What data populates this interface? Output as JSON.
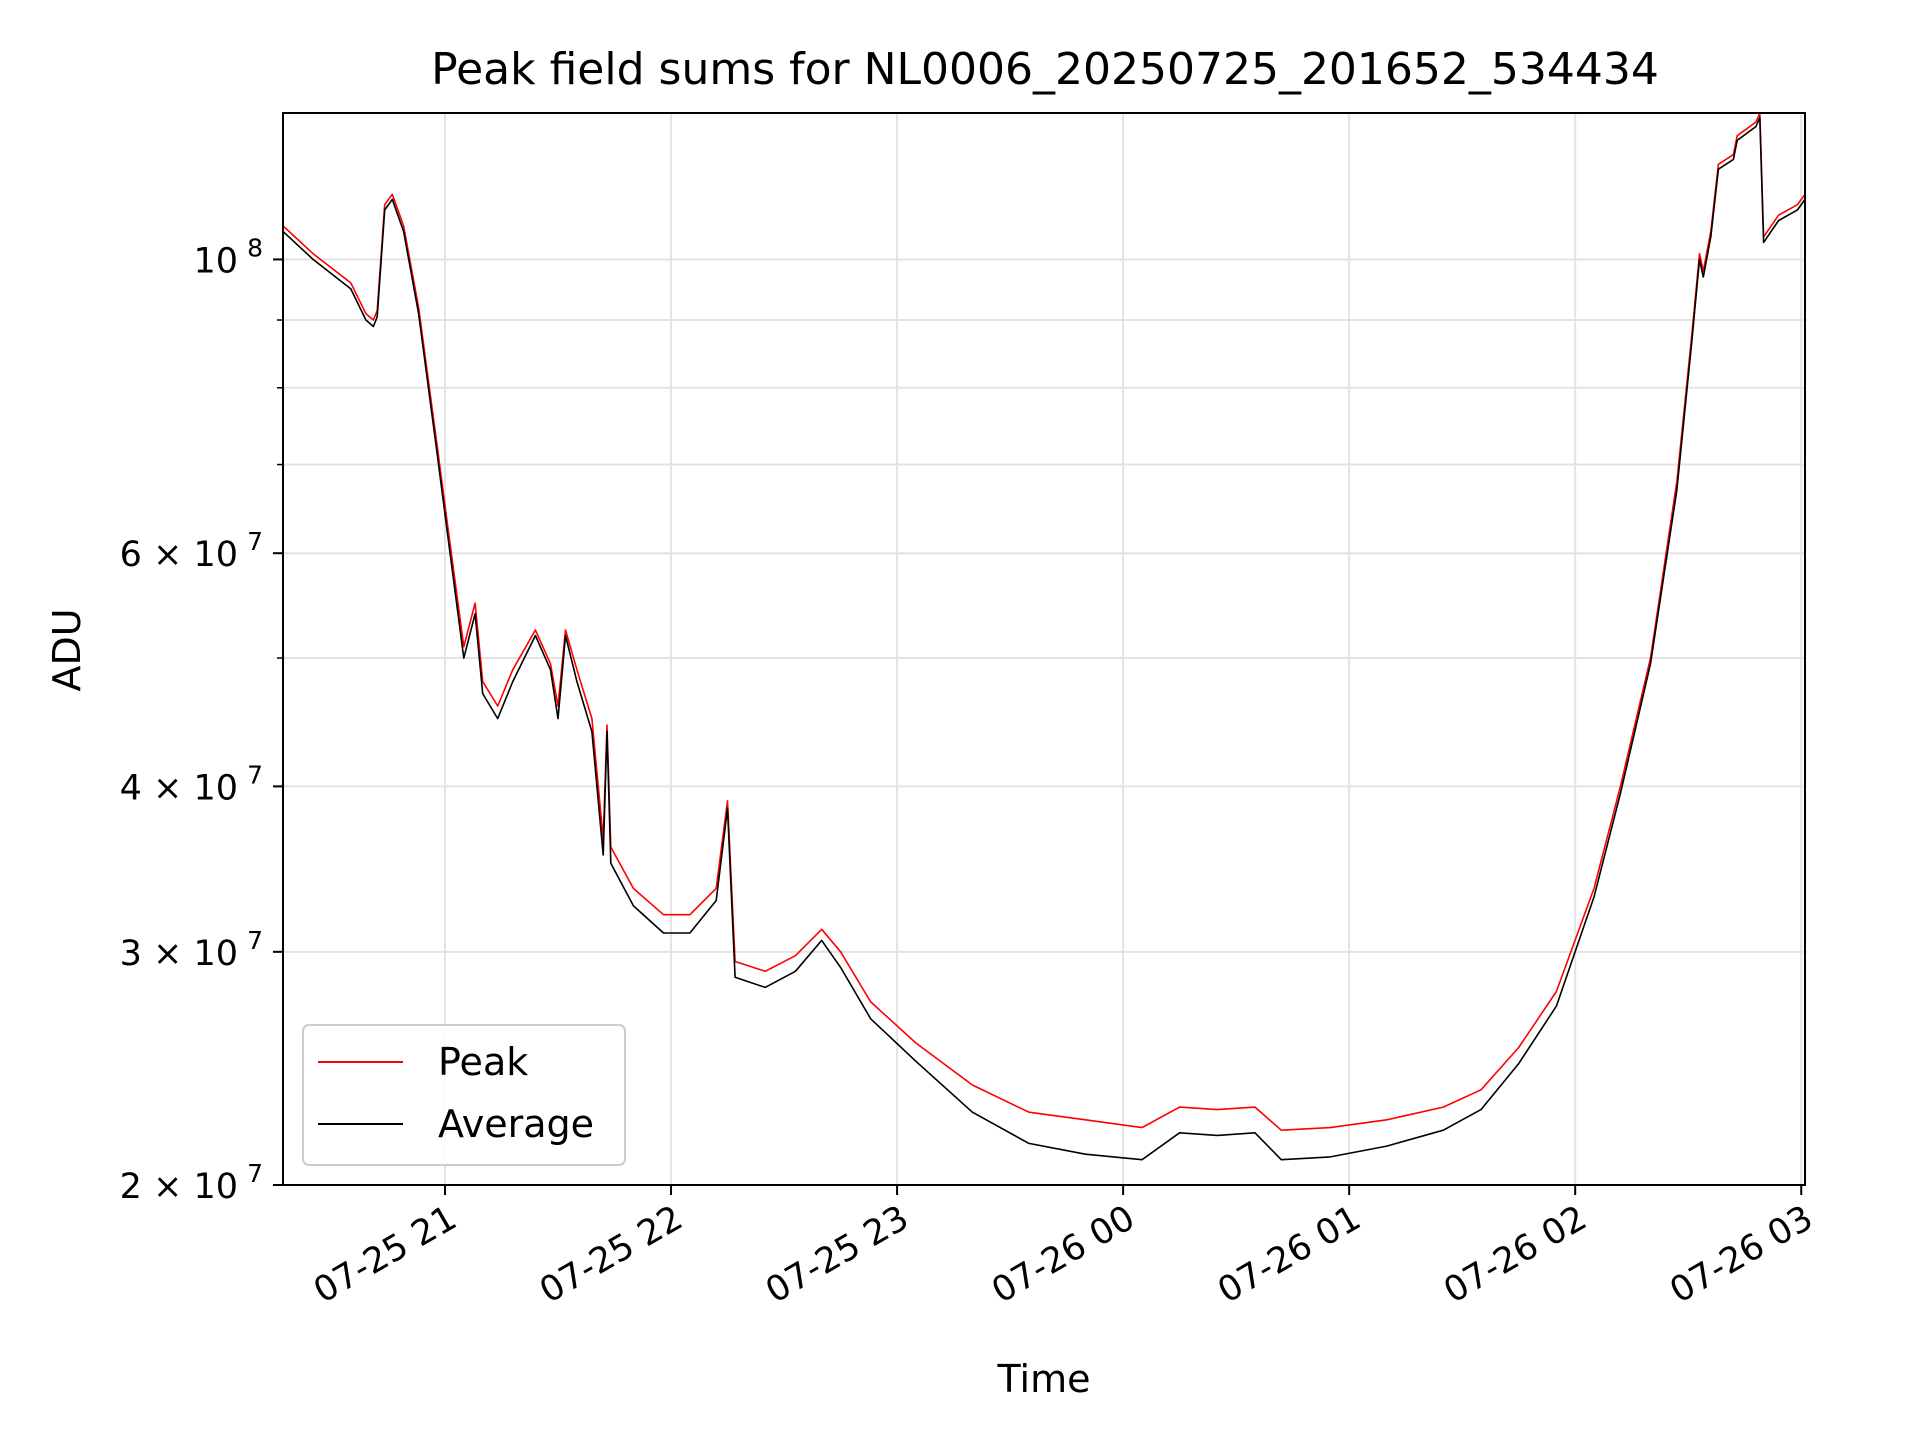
{
  "chart_data": {
    "type": "line",
    "title": "Peak field sums for NL0006_20250725_201652_534434",
    "xlabel": "Time",
    "ylabel": "ADU",
    "yscale": "log",
    "grid": true,
    "legend_position": "lower-left",
    "xlim": [
      "2025-07-25 20:17",
      "2025-07-26 03:01"
    ],
    "ylim": [
      20000000,
      129000000
    ],
    "x_ticks": [
      {
        "t": "2025-07-25 21:00",
        "label": "07-25 21"
      },
      {
        "t": "2025-07-25 22:00",
        "label": "07-25 22"
      },
      {
        "t": "2025-07-25 23:00",
        "label": "07-25 23"
      },
      {
        "t": "2025-07-26 00:00",
        "label": "07-26 00"
      },
      {
        "t": "2025-07-26 01:00",
        "label": "07-26 01"
      },
      {
        "t": "2025-07-26 02:00",
        "label": "07-26 02"
      },
      {
        "t": "2025-07-26 03:00",
        "label": "07-26 03"
      }
    ],
    "y_ticks": [
      {
        "value": 20000000,
        "label_base": "2 × 10",
        "label_exp": "7"
      },
      {
        "value": 30000000,
        "label_base": "3 × 10",
        "label_exp": "7"
      },
      {
        "value": 40000000,
        "label_base": "4 × 10",
        "label_exp": "7"
      },
      {
        "value": 60000000,
        "label_base": "6 × 10",
        "label_exp": "7"
      },
      {
        "value": 100000000,
        "label_base": "10",
        "label_exp": "8"
      }
    ],
    "y_minor_ticks": [
      50000000,
      70000000,
      80000000,
      90000000
    ],
    "series": [
      {
        "name": "Peak",
        "color": "#ff0000",
        "points": [
          [
            "2025-07-25 20:17",
            106000000
          ],
          [
            "2025-07-25 20:25",
            101000000
          ],
          [
            "2025-07-25 20:35",
            96000000
          ],
          [
            "2025-07-25 20:39",
            91000000
          ],
          [
            "2025-07-25 20:41",
            90000000
          ],
          [
            "2025-07-25 20:42",
            91500000
          ],
          [
            "2025-07-25 20:44",
            110000000
          ],
          [
            "2025-07-25 20:46",
            112000000
          ],
          [
            "2025-07-25 20:49",
            106000000
          ],
          [
            "2025-07-25 20:53",
            92000000
          ],
          [
            "2025-07-25 20:58",
            72000000
          ],
          [
            "2025-07-25 21:01",
            62000000
          ],
          [
            "2025-07-25 21:05",
            51000000
          ],
          [
            "2025-07-25 21:08",
            55000000
          ],
          [
            "2025-07-25 21:10",
            48000000
          ],
          [
            "2025-07-25 21:14",
            46000000
          ],
          [
            "2025-07-25 21:18",
            49000000
          ],
          [
            "2025-07-25 21:24",
            52500000
          ],
          [
            "2025-07-25 21:28",
            49500000
          ],
          [
            "2025-07-25 21:30",
            46000000
          ],
          [
            "2025-07-25 21:32",
            52500000
          ],
          [
            "2025-07-25 21:35",
            49000000
          ],
          [
            "2025-07-25 21:39",
            45000000
          ],
          [
            "2025-07-25 21:42",
            36500000
          ],
          [
            "2025-07-25 21:43",
            44500000
          ],
          [
            "2025-07-25 21:44",
            36000000
          ],
          [
            "2025-07-25 21:50",
            33500000
          ],
          [
            "2025-07-25 21:58",
            32000000
          ],
          [
            "2025-07-25 22:05",
            32000000
          ],
          [
            "2025-07-25 22:12",
            33500000
          ],
          [
            "2025-07-25 22:15",
            39000000
          ],
          [
            "2025-07-25 22:17",
            29500000
          ],
          [
            "2025-07-25 22:25",
            29000000
          ],
          [
            "2025-07-25 22:33",
            29800000
          ],
          [
            "2025-07-25 22:40",
            31200000
          ],
          [
            "2025-07-25 22:45",
            30000000
          ],
          [
            "2025-07-25 22:53",
            27500000
          ],
          [
            "2025-07-25 23:05",
            25600000
          ],
          [
            "2025-07-25 23:20",
            23800000
          ],
          [
            "2025-07-25 23:35",
            22700000
          ],
          [
            "2025-07-25 23:50",
            22400000
          ],
          [
            "2025-07-26 00:05",
            22100000
          ],
          [
            "2025-07-26 00:15",
            22900000
          ],
          [
            "2025-07-26 00:25",
            22800000
          ],
          [
            "2025-07-26 00:35",
            22900000
          ],
          [
            "2025-07-26 00:42",
            22000000
          ],
          [
            "2025-07-26 00:55",
            22100000
          ],
          [
            "2025-07-26 01:10",
            22400000
          ],
          [
            "2025-07-26 01:25",
            22900000
          ],
          [
            "2025-07-26 01:35",
            23600000
          ],
          [
            "2025-07-26 01:45",
            25400000
          ],
          [
            "2025-07-26 01:55",
            28000000
          ],
          [
            "2025-07-26 02:05",
            33500000
          ],
          [
            "2025-07-26 02:12",
            40000000
          ],
          [
            "2025-07-26 02:20",
            50000000
          ],
          [
            "2025-07-26 02:27",
            68000000
          ],
          [
            "2025-07-26 02:31",
            88000000
          ],
          [
            "2025-07-26 02:33",
            101000000
          ],
          [
            "2025-07-26 02:34",
            98000000
          ],
          [
            "2025-07-26 02:36",
            105000000
          ],
          [
            "2025-07-26 02:38",
            118000000
          ],
          [
            "2025-07-26 02:42",
            120000000
          ],
          [
            "2025-07-26 02:43",
            124000000
          ],
          [
            "2025-07-26 02:48",
            127000000
          ],
          [
            "2025-07-26 02:49",
            129000000
          ],
          [
            "2025-07-26 02:50",
            104000000
          ],
          [
            "2025-07-26 02:54",
            108000000
          ],
          [
            "2025-07-26 02:59",
            110000000
          ],
          [
            "2025-07-26 03:01",
            112000000
          ]
        ]
      },
      {
        "name": "Average",
        "color": "#000000",
        "points": [
          [
            "2025-07-25 20:17",
            105000000
          ],
          [
            "2025-07-25 20:25",
            100000000
          ],
          [
            "2025-07-25 20:35",
            95000000
          ],
          [
            "2025-07-25 20:39",
            90000000
          ],
          [
            "2025-07-25 20:41",
            89000000
          ],
          [
            "2025-07-25 20:42",
            90500000
          ],
          [
            "2025-07-25 20:44",
            109000000
          ],
          [
            "2025-07-25 20:46",
            111000000
          ],
          [
            "2025-07-25 20:49",
            105000000
          ],
          [
            "2025-07-25 20:53",
            91000000
          ],
          [
            "2025-07-25 20:58",
            71000000
          ],
          [
            "2025-07-25 21:01",
            61000000
          ],
          [
            "2025-07-25 21:05",
            50000000
          ],
          [
            "2025-07-25 21:08",
            54000000
          ],
          [
            "2025-07-25 21:10",
            47000000
          ],
          [
            "2025-07-25 21:14",
            45000000
          ],
          [
            "2025-07-25 21:18",
            48000000
          ],
          [
            "2025-07-25 21:24",
            52000000
          ],
          [
            "2025-07-25 21:28",
            49000000
          ],
          [
            "2025-07-25 21:30",
            45000000
          ],
          [
            "2025-07-25 21:32",
            52000000
          ],
          [
            "2025-07-25 21:35",
            48000000
          ],
          [
            "2025-07-25 21:39",
            44000000
          ],
          [
            "2025-07-25 21:42",
            35500000
          ],
          [
            "2025-07-25 21:43",
            44000000
          ],
          [
            "2025-07-25 21:44",
            35000000
          ],
          [
            "2025-07-25 21:50",
            32500000
          ],
          [
            "2025-07-25 21:58",
            31000000
          ],
          [
            "2025-07-25 22:05",
            31000000
          ],
          [
            "2025-07-25 22:12",
            32800000
          ],
          [
            "2025-07-25 22:15",
            38500000
          ],
          [
            "2025-07-25 22:17",
            28700000
          ],
          [
            "2025-07-25 22:25",
            28200000
          ],
          [
            "2025-07-25 22:33",
            29000000
          ],
          [
            "2025-07-25 22:40",
            30600000
          ],
          [
            "2025-07-25 22:45",
            29200000
          ],
          [
            "2025-07-25 22:53",
            26700000
          ],
          [
            "2025-07-25 23:05",
            24800000
          ],
          [
            "2025-07-25 23:20",
            22700000
          ],
          [
            "2025-07-25 23:35",
            21500000
          ],
          [
            "2025-07-25 23:50",
            21100000
          ],
          [
            "2025-07-26 00:05",
            20900000
          ],
          [
            "2025-07-26 00:15",
            21900000
          ],
          [
            "2025-07-26 00:25",
            21800000
          ],
          [
            "2025-07-26 00:35",
            21900000
          ],
          [
            "2025-07-26 00:42",
            20900000
          ],
          [
            "2025-07-26 00:55",
            21000000
          ],
          [
            "2025-07-26 01:10",
            21400000
          ],
          [
            "2025-07-26 01:25",
            22000000
          ],
          [
            "2025-07-26 01:35",
            22800000
          ],
          [
            "2025-07-26 01:45",
            24700000
          ],
          [
            "2025-07-26 01:55",
            27300000
          ],
          [
            "2025-07-26 02:05",
            33000000
          ],
          [
            "2025-07-26 02:12",
            39500000
          ],
          [
            "2025-07-26 02:20",
            49500000
          ],
          [
            "2025-07-26 02:27",
            67000000
          ],
          [
            "2025-07-26 02:31",
            87000000
          ],
          [
            "2025-07-26 02:33",
            100000000
          ],
          [
            "2025-07-26 02:34",
            97000000
          ],
          [
            "2025-07-26 02:36",
            104000000
          ],
          [
            "2025-07-26 02:38",
            117000000
          ],
          [
            "2025-07-26 02:42",
            119000000
          ],
          [
            "2025-07-26 02:43",
            123000000
          ],
          [
            "2025-07-26 02:48",
            126000000
          ],
          [
            "2025-07-26 02:49",
            128000000
          ],
          [
            "2025-07-26 02:50",
            103000000
          ],
          [
            "2025-07-26 02:54",
            107000000
          ],
          [
            "2025-07-26 02:59",
            109000000
          ],
          [
            "2025-07-26 03:01",
            111000000
          ]
        ]
      }
    ]
  }
}
